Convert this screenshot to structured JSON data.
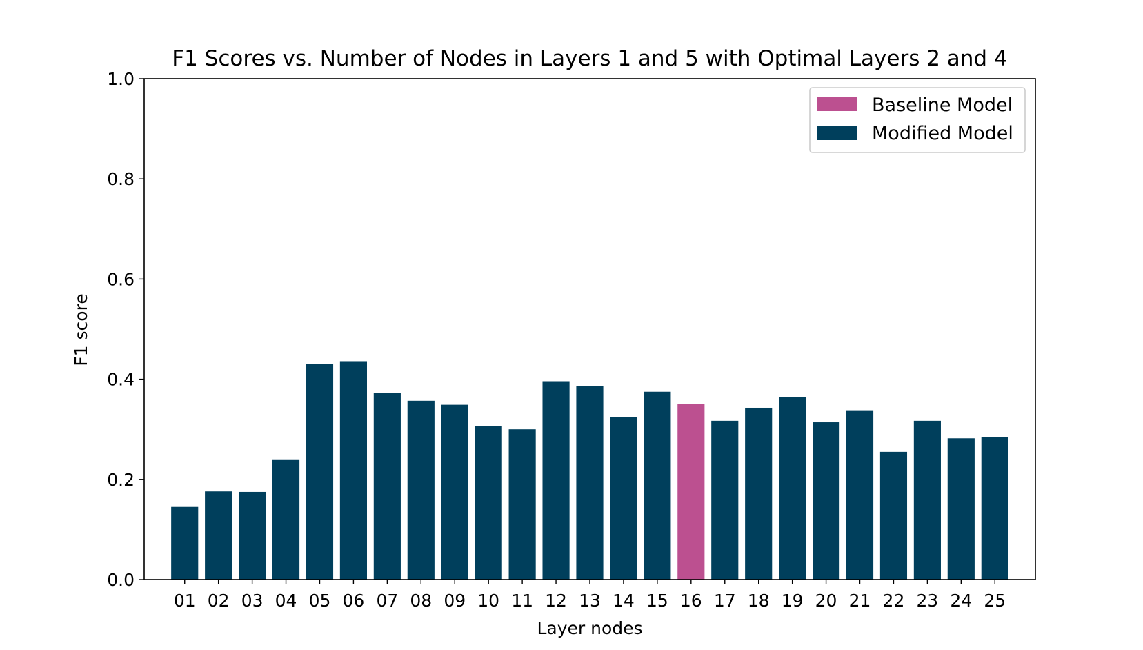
{
  "chart_data": {
    "type": "bar",
    "title": "F1 Scores vs. Number of Nodes in Layers 1 and 5 with Optimal Layers 2 and 4",
    "xlabel": "Layer nodes",
    "ylabel": "F1 score",
    "ylim": [
      0,
      1.0
    ],
    "yticks": [
      "0.0",
      "0.2",
      "0.4",
      "0.6",
      "0.8",
      "1.0"
    ],
    "grid": false,
    "legend_position": "top-right",
    "categories": [
      "01",
      "02",
      "03",
      "04",
      "05",
      "06",
      "07",
      "08",
      "09",
      "10",
      "11",
      "12",
      "13",
      "14",
      "15",
      "16",
      "17",
      "18",
      "19",
      "20",
      "21",
      "22",
      "23",
      "24",
      "25"
    ],
    "values": [
      0.145,
      0.176,
      0.175,
      0.24,
      0.43,
      0.436,
      0.372,
      0.357,
      0.349,
      0.307,
      0.3,
      0.396,
      0.386,
      0.325,
      0.375,
      0.35,
      0.317,
      0.343,
      0.365,
      0.314,
      0.338,
      0.255,
      0.317,
      0.282,
      0.285
    ],
    "baseline_category": "16",
    "series": [
      {
        "name": "Baseline Model",
        "color": "#bc5090"
      },
      {
        "name": "Modified Model",
        "color": "#003f5c"
      }
    ]
  }
}
